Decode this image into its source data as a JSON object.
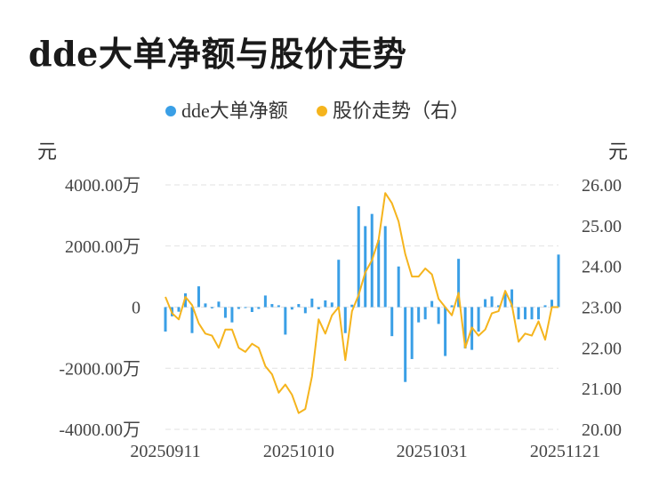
{
  "header": {
    "title": "dde大单净额与股价走势"
  },
  "colors": {
    "bar": "#3a9fe6",
    "line": "#f5b41d",
    "grid": "#e2e2e2"
  },
  "chart_data": {
    "type": "bar+line",
    "title": "dde大单净额与股价走势",
    "legend": {
      "position": "top-center",
      "entries": [
        "dde大单净额",
        "股价走势（右）"
      ]
    },
    "y_left_unit": "元",
    "y_right_unit": "元",
    "y_left_ticks": [
      "4000.00万",
      "2000.00万",
      "0",
      "-2000.00万",
      "-4000.00万"
    ],
    "y_right_ticks": [
      "26.00",
      "25.00",
      "24.00",
      "23.00",
      "22.00",
      "21.00",
      "20.00"
    ],
    "ylim_left": [
      -4000,
      4000
    ],
    "ylim_right": [
      20,
      26
    ],
    "x_tick_labels": [
      "20250911",
      "20251010",
      "20251031",
      "20251121"
    ],
    "x_tick_index": [
      0,
      20,
      40,
      60
    ],
    "grid": true,
    "series": [
      {
        "name": "dde大单净额",
        "type": "bar",
        "axis": "left",
        "unit": "万",
        "values": [
          -800,
          -300,
          -150,
          450,
          -850,
          680,
          120,
          -40,
          180,
          -350,
          -500,
          -60,
          -30,
          -160,
          -60,
          380,
          100,
          60,
          -900,
          -80,
          100,
          -200,
          280,
          -70,
          220,
          150,
          1550,
          -850,
          80,
          3300,
          2650,
          3050,
          2200,
          2650,
          -950,
          1330,
          -2450,
          -1700,
          -500,
          -400,
          200,
          -550,
          -1600,
          60,
          1580,
          -1350,
          -1400,
          -800,
          260,
          350,
          60,
          450,
          580,
          -400,
          -400,
          -400,
          -400,
          60,
          240,
          1720
        ]
      },
      {
        "name": "股价走势（右）",
        "type": "line",
        "axis": "right",
        "values": [
          23.25,
          22.85,
          22.7,
          23.25,
          23.05,
          22.6,
          22.35,
          22.3,
          22.0,
          22.45,
          22.45,
          22.0,
          21.9,
          22.1,
          22.0,
          21.55,
          21.35,
          20.9,
          21.1,
          20.85,
          20.4,
          20.5,
          21.3,
          22.7,
          22.35,
          22.8,
          23.0,
          21.7,
          22.9,
          23.3,
          23.85,
          24.15,
          24.65,
          25.8,
          25.55,
          25.1,
          24.3,
          23.75,
          23.75,
          23.95,
          23.8,
          23.2,
          23.0,
          22.8,
          23.35,
          22.0,
          22.5,
          22.3,
          22.45,
          22.85,
          22.9,
          23.4,
          23.05,
          22.15,
          22.35,
          22.3,
          22.65,
          22.2,
          23.0,
          23.0
        ]
      }
    ]
  }
}
